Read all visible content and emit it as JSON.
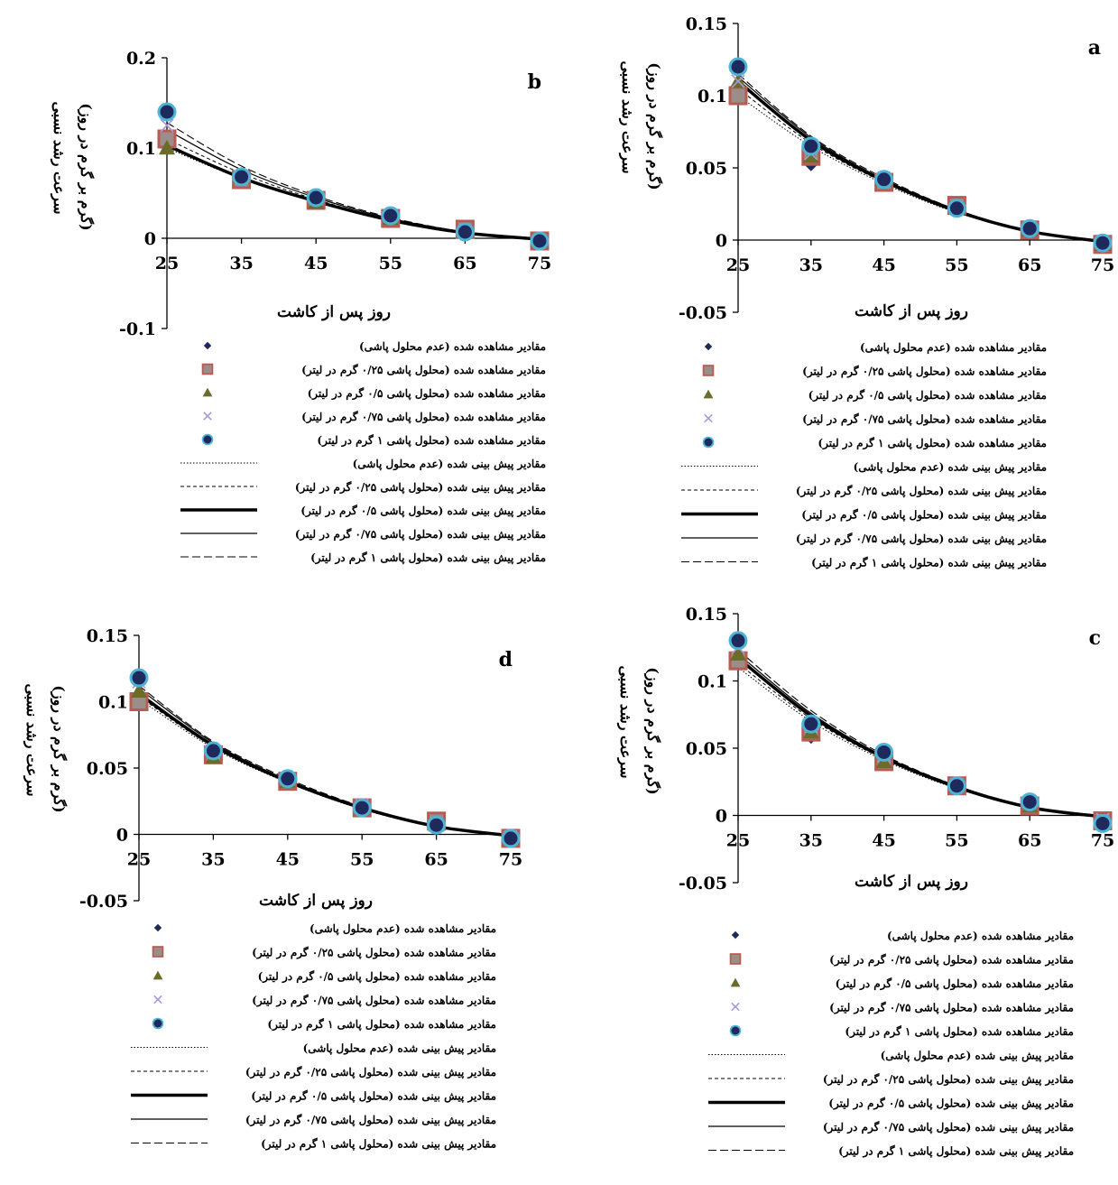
{
  "figure": {
    "legend_labels": {
      "obs_0": "مقادیر مشاهده شده (عدم محلول پاشی)",
      "obs_025": "مقادیر مشاهده شده (محلول پاشی ۰/۲۵ گرم در لیتر)",
      "obs_05": "مقادیر مشاهده شده (محلول پاشی ۰/۵ گرم در لیتر)",
      "obs_075": "مقادیر مشاهده شده (محلول پاشی ۰/۷۵ گرم در لیتر)",
      "obs_1": "مقادیر مشاهده شده (محلول پاشی ۱ گرم در لیتر)",
      "pred_0": "مقادیر پیش بینی شده (عدم محلول پاشی)",
      "pred_025": "مقادیر پیش بینی شده (محلول پاشی ۰/۲۵ گرم در لیتر)",
      "pred_05": "مقادیر پیش بینی شده (محلول پاشی ۰/۵ گرم در لیتر)",
      "pred_075": "مقادیر پیش بینی شده (محلول پاشی ۰/۷۵ گرم در لیتر)",
      "pred_1": "مقادیر پیش بینی شده (محلول پاشی ۱ گرم در لیتر)"
    },
    "xlabel": "روز پس از کاشت",
    "ylabel_line1": "سرعت رشد نسبی",
    "ylabel_line2": "(گرم بر گرم در روز)",
    "marker_colors": {
      "diamond": "#1f2a5c",
      "square": "#b85b52",
      "triangle": "#6b6b2a",
      "x": "#a99ad6",
      "circle": "#1f2a5c",
      "circle_edge": "#4fb3d6"
    }
  },
  "chart_data": [
    {
      "panel": "a",
      "type": "scatter",
      "xlim": [
        25,
        75
      ],
      "ylim": [
        -0.05,
        0.15
      ],
      "yticks": [
        "0.15",
        "0.1",
        "0.05",
        "0",
        "-0.05"
      ],
      "xticks": [
        "25",
        "35",
        "45",
        "55",
        "65",
        "75"
      ],
      "x": [
        25,
        35,
        45,
        55,
        65,
        75
      ],
      "series": [
        {
          "key": "obs_0",
          "kind": "observed",
          "marker": "diamond",
          "values": [
            0.105,
            0.052,
            0.042,
            0.022,
            0.007,
            -0.003
          ]
        },
        {
          "key": "obs_025",
          "kind": "observed",
          "marker": "square",
          "values": [
            0.1,
            0.058,
            0.04,
            0.024,
            0.007,
            -0.003
          ]
        },
        {
          "key": "obs_05",
          "kind": "observed",
          "marker": "triangle",
          "values": [
            0.11,
            0.058,
            0.042,
            0.022,
            0.007,
            -0.003
          ]
        },
        {
          "key": "obs_075",
          "kind": "observed",
          "marker": "x",
          "values": [
            0.11,
            0.06,
            0.043,
            0.022,
            0.008,
            -0.002
          ]
        },
        {
          "key": "obs_1",
          "kind": "observed",
          "marker": "circle",
          "values": [
            0.12,
            0.065,
            0.042,
            0.022,
            0.008,
            -0.002
          ]
        },
        {
          "key": "pred_0",
          "kind": "predicted",
          "line": "dotted",
          "values": [
            0.1,
            0.065,
            0.039,
            0.019,
            0.006,
            -0.001
          ]
        },
        {
          "key": "pred_025",
          "kind": "predicted",
          "line": "short-dash",
          "values": [
            0.105,
            0.067,
            0.04,
            0.02,
            0.006,
            -0.001
          ]
        },
        {
          "key": "pred_05",
          "kind": "predicted",
          "line": "thick",
          "values": [
            0.11,
            0.069,
            0.041,
            0.02,
            0.006,
            -0.001
          ]
        },
        {
          "key": "pred_075",
          "kind": "predicted",
          "line": "thin",
          "values": [
            0.113,
            0.071,
            0.042,
            0.021,
            0.006,
            -0.001
          ]
        },
        {
          "key": "pred_1",
          "kind": "predicted",
          "line": "long-dash",
          "values": [
            0.115,
            0.072,
            0.043,
            0.021,
            0.006,
            -0.001
          ]
        }
      ]
    },
    {
      "panel": "b",
      "type": "scatter",
      "xlim": [
        25,
        75
      ],
      "ylim": [
        -0.1,
        0.2
      ],
      "yticks": [
        "0.2",
        "0.1",
        "0",
        "-0.1"
      ],
      "xticks": [
        "25",
        "35",
        "45",
        "55",
        "65",
        "75"
      ],
      "x": [
        25,
        35,
        45,
        55,
        65,
        75
      ],
      "series": [
        {
          "key": "obs_0",
          "kind": "observed",
          "marker": "diamond",
          "values": [
            0.105,
            0.065,
            0.045,
            0.025,
            0.007,
            -0.003
          ]
        },
        {
          "key": "obs_025",
          "kind": "observed",
          "marker": "square",
          "values": [
            0.11,
            0.065,
            0.042,
            0.022,
            0.01,
            -0.003
          ]
        },
        {
          "key": "obs_05",
          "kind": "observed",
          "marker": "triangle",
          "values": [
            0.1,
            0.068,
            0.04,
            0.022,
            0.007,
            -0.003
          ]
        },
        {
          "key": "obs_075",
          "kind": "observed",
          "marker": "x",
          "values": [
            0.125,
            0.068,
            0.044,
            0.024,
            0.008,
            -0.002
          ]
        },
        {
          "key": "obs_1",
          "kind": "observed",
          "marker": "circle",
          "values": [
            0.14,
            0.068,
            0.045,
            0.025,
            0.007,
            -0.003
          ]
        },
        {
          "key": "pred_0",
          "kind": "predicted",
          "line": "dotted",
          "values": [
            0.1,
            0.066,
            0.04,
            0.02,
            0.006,
            -0.001
          ]
        },
        {
          "key": "pred_025",
          "kind": "predicted",
          "line": "short-dash",
          "values": [
            0.11,
            0.072,
            0.043,
            0.021,
            0.007,
            -0.001
          ]
        },
        {
          "key": "pred_05",
          "kind": "predicted",
          "line": "thick",
          "values": [
            0.103,
            0.067,
            0.041,
            0.02,
            0.006,
            -0.001
          ]
        },
        {
          "key": "pred_075",
          "kind": "predicted",
          "line": "thin",
          "values": [
            0.12,
            0.076,
            0.045,
            0.022,
            0.007,
            -0.001
          ]
        },
        {
          "key": "pred_1",
          "kind": "predicted",
          "line": "long-dash",
          "values": [
            0.128,
            0.08,
            0.047,
            0.023,
            0.007,
            -0.001
          ]
        }
      ]
    },
    {
      "panel": "c",
      "type": "scatter",
      "xlim": [
        25,
        75
      ],
      "ylim": [
        -0.05,
        0.15
      ],
      "yticks": [
        "0.15",
        "0.1",
        "0.05",
        "0",
        "-0.05"
      ],
      "xticks": [
        "25",
        "35",
        "45",
        "55",
        "65",
        "75"
      ],
      "x": [
        25,
        35,
        45,
        55,
        65,
        75
      ],
      "series": [
        {
          "key": "obs_0",
          "kind": "observed",
          "marker": "diamond",
          "values": [
            0.115,
            0.058,
            0.045,
            0.022,
            0.008,
            -0.004
          ]
        },
        {
          "key": "obs_025",
          "kind": "observed",
          "marker": "square",
          "values": [
            0.115,
            0.062,
            0.04,
            0.022,
            0.007,
            -0.004
          ]
        },
        {
          "key": "obs_05",
          "kind": "observed",
          "marker": "triangle",
          "values": [
            0.12,
            0.062,
            0.04,
            0.022,
            0.007,
            -0.004
          ]
        },
        {
          "key": "obs_075",
          "kind": "observed",
          "marker": "x",
          "values": [
            0.125,
            0.066,
            0.044,
            0.023,
            0.01,
            -0.003
          ]
        },
        {
          "key": "obs_1",
          "kind": "observed",
          "marker": "circle",
          "values": [
            0.13,
            0.068,
            0.047,
            0.022,
            0.01,
            -0.006
          ]
        },
        {
          "key": "pred_0",
          "kind": "predicted",
          "line": "dotted",
          "values": [
            0.11,
            0.07,
            0.041,
            0.02,
            0.006,
            -0.001
          ]
        },
        {
          "key": "pred_025",
          "kind": "predicted",
          "line": "short-dash",
          "values": [
            0.113,
            0.072,
            0.042,
            0.021,
            0.006,
            -0.001
          ]
        },
        {
          "key": "pred_05",
          "kind": "predicted",
          "line": "thick",
          "values": [
            0.117,
            0.074,
            0.043,
            0.021,
            0.006,
            -0.001
          ]
        },
        {
          "key": "pred_075",
          "kind": "predicted",
          "line": "thin",
          "values": [
            0.12,
            0.076,
            0.044,
            0.022,
            0.006,
            -0.001
          ]
        },
        {
          "key": "pred_1",
          "kind": "predicted",
          "line": "long-dash",
          "values": [
            0.123,
            0.078,
            0.045,
            0.022,
            0.006,
            -0.001
          ]
        }
      ]
    },
    {
      "panel": "d",
      "type": "scatter",
      "xlim": [
        25,
        75
      ],
      "ylim": [
        -0.05,
        0.15
      ],
      "yticks": [
        "0.15",
        "0.1",
        "0.05",
        "0",
        "-0.05"
      ],
      "xticks": [
        "25",
        "35",
        "45",
        "55",
        "65",
        "75"
      ],
      "x": [
        25,
        35,
        45,
        55,
        65,
        75
      ],
      "series": [
        {
          "key": "obs_0",
          "kind": "observed",
          "marker": "diamond",
          "values": [
            0.105,
            0.06,
            0.04,
            0.022,
            0.008,
            -0.003
          ]
        },
        {
          "key": "obs_025",
          "kind": "observed",
          "marker": "square",
          "values": [
            0.1,
            0.06,
            0.04,
            0.02,
            0.01,
            -0.003
          ]
        },
        {
          "key": "obs_05",
          "kind": "observed",
          "marker": "triangle",
          "values": [
            0.108,
            0.058,
            0.04,
            0.02,
            0.007,
            -0.003
          ]
        },
        {
          "key": "obs_075",
          "kind": "observed",
          "marker": "x",
          "values": [
            0.115,
            0.062,
            0.042,
            0.022,
            0.008,
            -0.002
          ]
        },
        {
          "key": "obs_1",
          "kind": "observed",
          "marker": "circle",
          "values": [
            0.118,
            0.063,
            0.042,
            0.02,
            0.007,
            -0.003
          ]
        },
        {
          "key": "pred_0",
          "kind": "predicted",
          "line": "dotted",
          "values": [
            0.102,
            0.065,
            0.039,
            0.019,
            0.006,
            -0.001
          ]
        },
        {
          "key": "pred_025",
          "kind": "predicted",
          "line": "short-dash",
          "values": [
            0.104,
            0.066,
            0.04,
            0.019,
            0.006,
            -0.001
          ]
        },
        {
          "key": "pred_05",
          "kind": "predicted",
          "line": "thick",
          "values": [
            0.106,
            0.067,
            0.04,
            0.02,
            0.006,
            -0.001
          ]
        },
        {
          "key": "pred_075",
          "kind": "predicted",
          "line": "thin",
          "values": [
            0.11,
            0.069,
            0.041,
            0.02,
            0.006,
            -0.001
          ]
        },
        {
          "key": "pred_1",
          "kind": "predicted",
          "line": "long-dash",
          "values": [
            0.112,
            0.07,
            0.042,
            0.021,
            0.006,
            -0.001
          ]
        }
      ]
    }
  ]
}
